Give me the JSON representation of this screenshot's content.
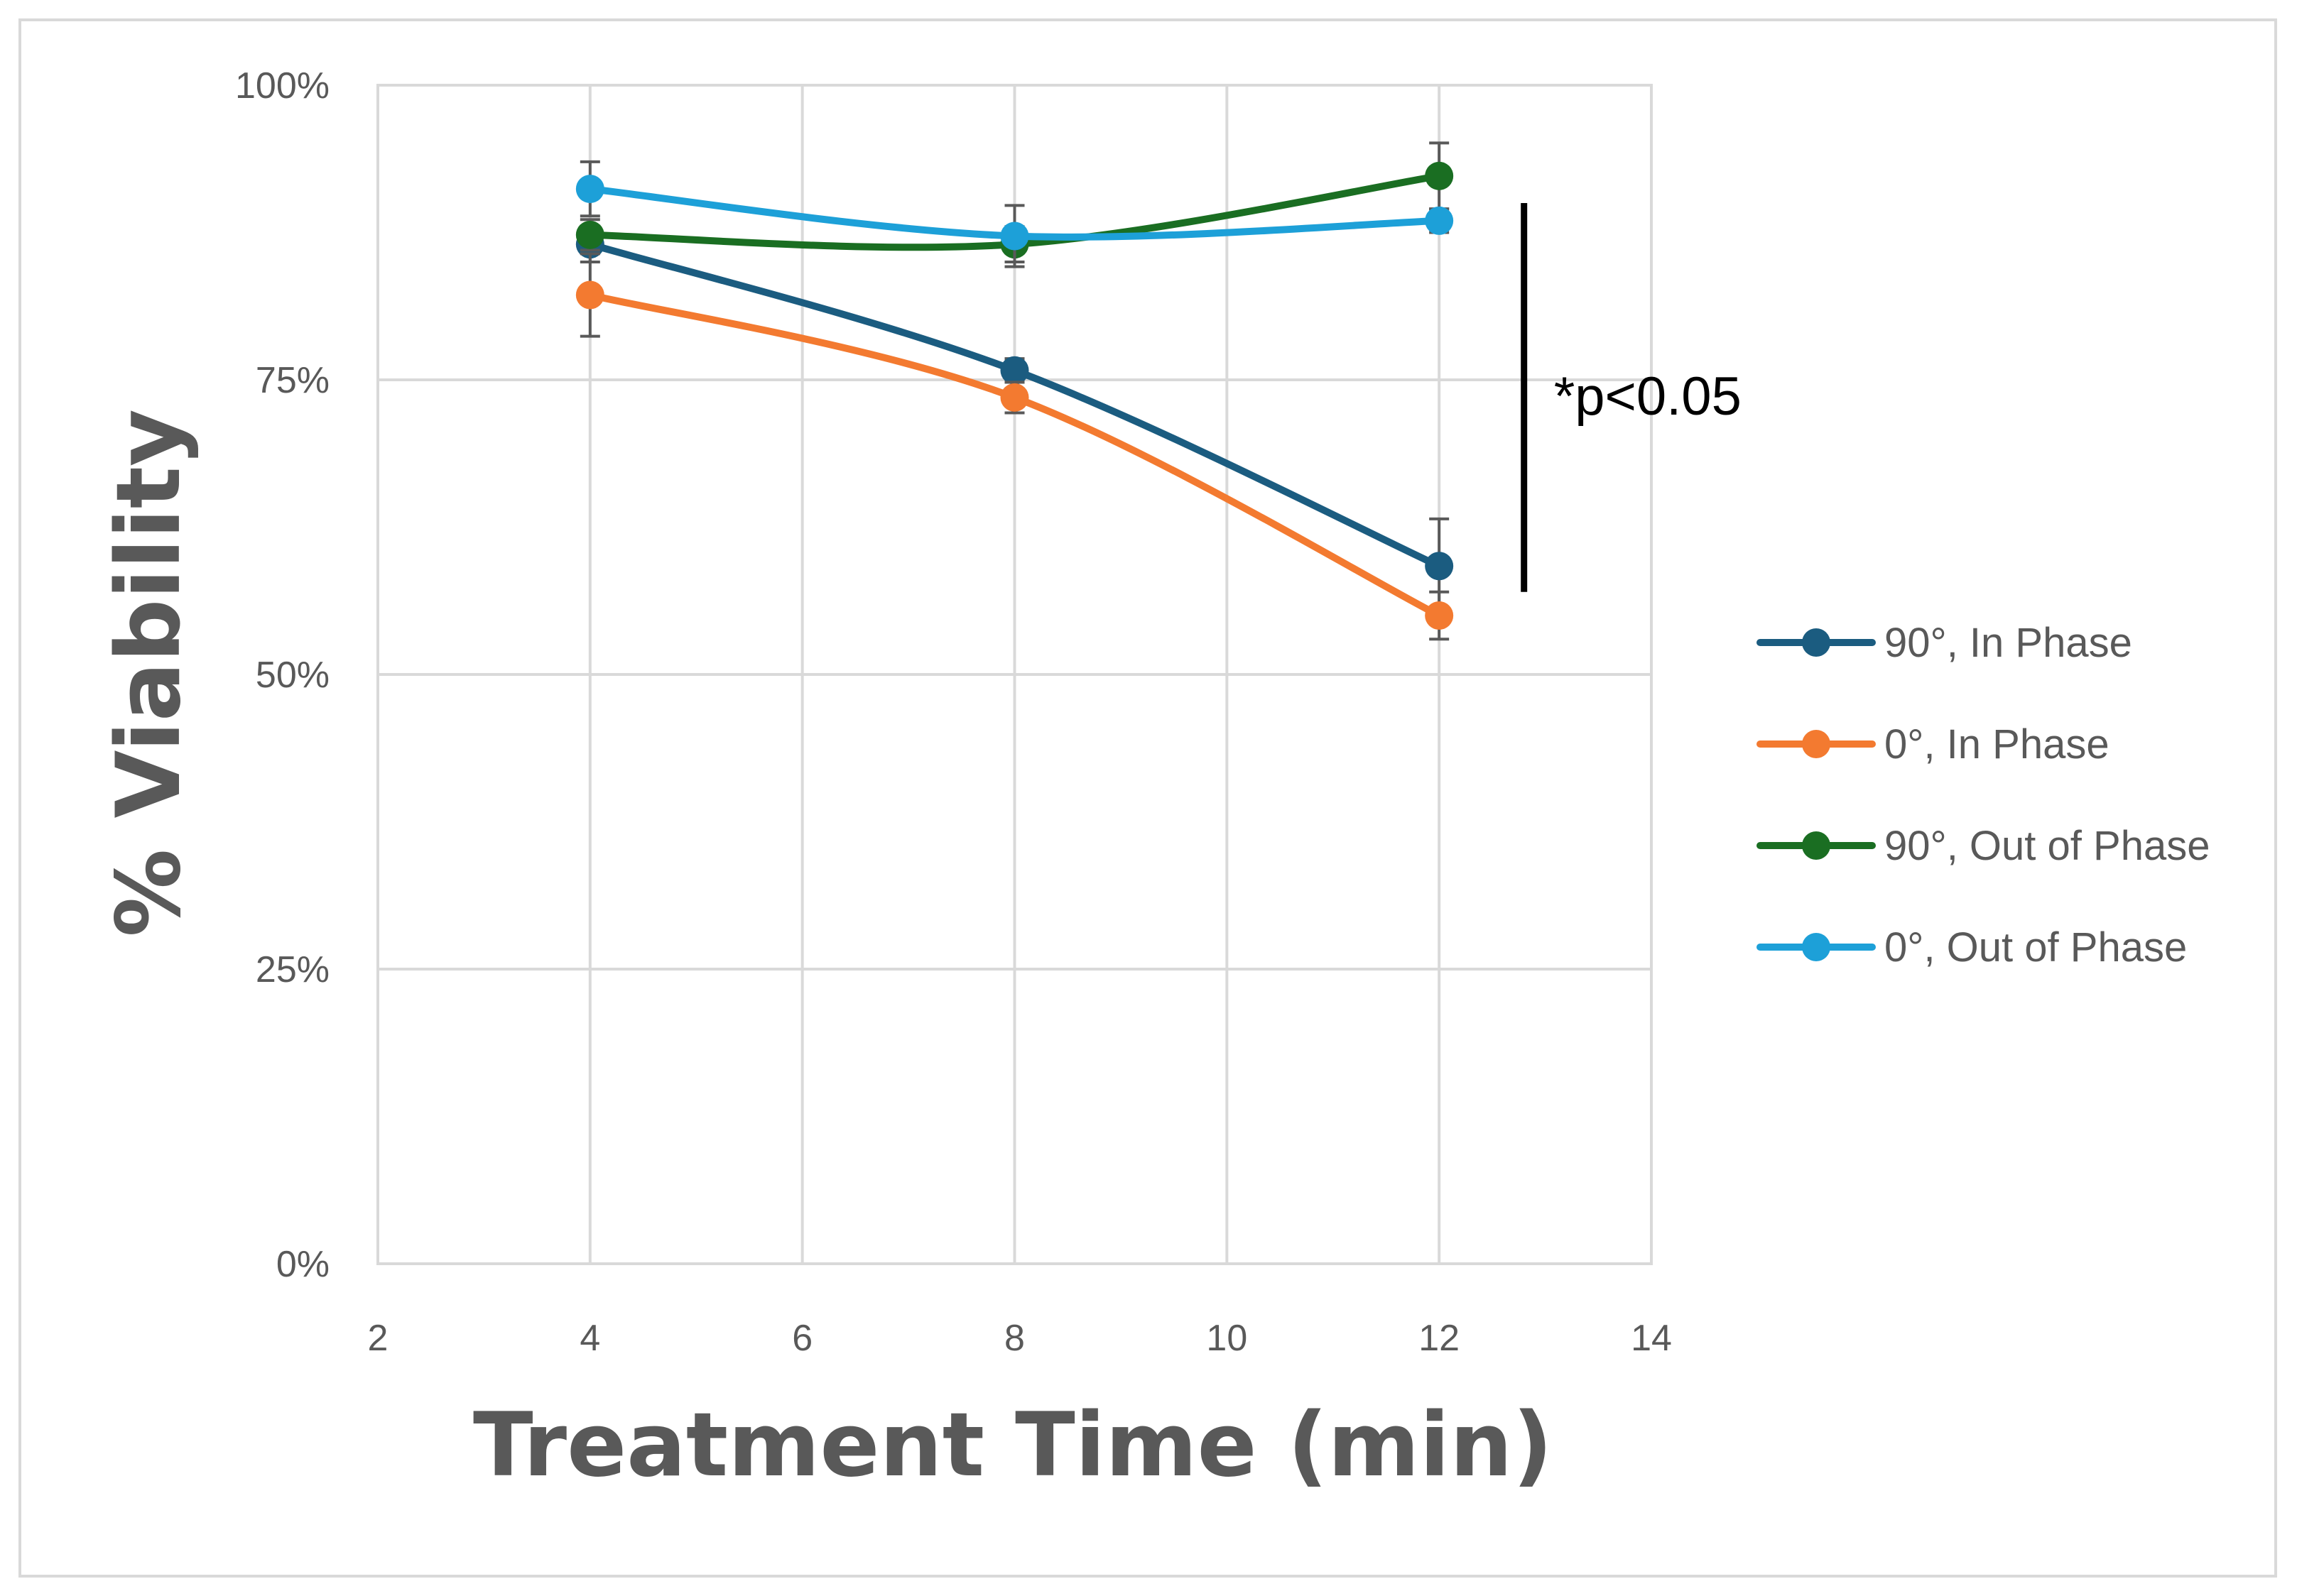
{
  "chart_data": {
    "type": "line",
    "title": "",
    "xlabel": "Treatment Time (min)",
    "ylabel": "% Viability",
    "xlim": [
      2,
      14
    ],
    "ylim": [
      0,
      100
    ],
    "x_ticks": [
      2,
      4,
      6,
      8,
      10,
      12,
      14
    ],
    "x_tick_labels": [
      "2",
      "4",
      "6",
      "8",
      "10",
      "12",
      "14"
    ],
    "y_ticks": [
      0,
      25,
      50,
      75,
      100
    ],
    "y_tick_labels": [
      "0%",
      "25%",
      "50%",
      "75%",
      "100%"
    ],
    "grid": true,
    "legend_position": "right",
    "series": [
      {
        "name": "90°, In Phase",
        "color": "#1b5c80",
        "x": [
          4,
          8,
          12
        ],
        "y": [
          86.5,
          75.8,
          59.2
        ],
        "err": [
          1.5,
          1.0,
          4.0
        ]
      },
      {
        "name": "0°, In Phase",
        "color": "#f37a30",
        "x": [
          4,
          8,
          12
        ],
        "y": [
          82.2,
          73.5,
          55.0
        ],
        "err": [
          3.5,
          1.3,
          2.0
        ]
      },
      {
        "name": "90°, Out of Phase",
        "color": "#1a6e22",
        "x": [
          4,
          8,
          12
        ],
        "y": [
          87.3,
          86.5,
          92.3
        ],
        "err": [
          1.3,
          1.5,
          2.8
        ]
      },
      {
        "name": "0°, Out of Phase",
        "color": "#1da0d8",
        "x": [
          4,
          8,
          12
        ],
        "y": [
          91.2,
          87.2,
          88.5
        ],
        "err": [
          2.3,
          2.6,
          1.0
        ]
      }
    ],
    "annotations": [
      {
        "text": "*p<0.05",
        "bracket_x": 12.8,
        "y_range": [
          57,
          90
        ]
      }
    ]
  }
}
